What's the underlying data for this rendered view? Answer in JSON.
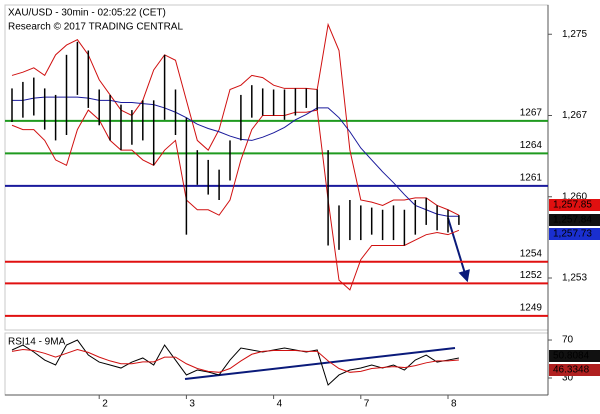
{
  "chart_data": [
    {
      "type": "hilo",
      "title": "XAU/USD - 30min - 02:05:22 (CET)",
      "subtitle": "Research © 2017 TRADING CENTRAL",
      "bar_color": "#000000",
      "high": [
        1270.0,
        1270.6,
        1271.0,
        1270.0,
        1269.4,
        1273.1,
        1274.3,
        1273.5,
        1269.9,
        1269.4,
        1268.5,
        1268.0,
        1268.9,
        1268.9,
        1273.1,
        1269.9,
        1267.3,
        1264.3,
        1263.4,
        1262.5,
        1265.2,
        1269.4,
        1270.3,
        1270.0,
        1269.9,
        1269.9,
        1270.0,
        1270.0,
        1269.9,
        1264.3,
        1259.2,
        1259.7,
        1259.2,
        1259.0,
        1258.8,
        1259.2,
        1258.8,
        1259.7,
        1259.9,
        1259.2,
        1258.8,
        1258.3
      ],
      "low": [
        1266.9,
        1267.3,
        1267.5,
        1266.2,
        1265.2,
        1265.7,
        1269.4,
        1268.2,
        1266.6,
        1265.2,
        1264.3,
        1264.8,
        1265.2,
        1262.9,
        1267.1,
        1265.7,
        1256.5,
        1261.1,
        1260.2,
        1259.7,
        1261.5,
        1265.2,
        1267.3,
        1267.5,
        1267.5,
        1267.1,
        1267.5,
        1268.2,
        1268.0,
        1255.5,
        1255.1,
        1256.0,
        1256.0,
        1256.5,
        1256.0,
        1256.0,
        1255.5,
        1256.5,
        1257.4,
        1256.9,
        1256.7,
        1257.4
      ],
      "series": [
        {
          "color": "#d01010",
          "values": [
            1271.2,
            1271.5,
            1271.9,
            1271.2,
            1273.1,
            1274.0,
            1274.5,
            1273.1,
            1270.8,
            1269.4,
            1268.0,
            1267.5,
            1268.9,
            1271.7,
            1273.1,
            1272.6,
            1268.9,
            1265.2,
            1264.3,
            1266.2,
            1269.9,
            1270.3,
            1271.2,
            1271.0,
            1270.3,
            1270.0,
            1270.0,
            1270.0,
            1269.9,
            1275.9,
            1273.5,
            1264.3,
            1259.7,
            1259.5,
            1259.2,
            1259.7,
            1259.7,
            1259.9,
            1259.9,
            1259.2,
            1258.8,
            1258.3
          ]
        },
        {
          "color": "#d01010",
          "values": [
            1266.6,
            1266.2,
            1266.2,
            1265.2,
            1263.4,
            1262.9,
            1266.2,
            1268.0,
            1267.1,
            1265.2,
            1264.3,
            1264.3,
            1263.4,
            1262.9,
            1264.3,
            1265.2,
            1259.7,
            1258.8,
            1258.8,
            1258.3,
            1259.7,
            1263.4,
            1266.2,
            1267.5,
            1267.5,
            1267.5,
            1267.8,
            1267.8,
            1268.0,
            1259.7,
            1252.3,
            1251.4,
            1254.2,
            1255.5,
            1255.5,
            1255.5,
            1255.5,
            1256.0,
            1256.5,
            1256.7,
            1256.5,
            1256.9
          ]
        },
        {
          "color": "#1a1a9c",
          "values": [
            1268.9,
            1268.9,
            1269.1,
            1269.2,
            1269.2,
            1269.2,
            1269.2,
            1269.1,
            1268.9,
            1268.9,
            1268.7,
            1268.7,
            1268.6,
            1268.5,
            1268.2,
            1267.8,
            1267.3,
            1266.7,
            1266.3,
            1266.0,
            1265.6,
            1265.3,
            1265.2,
            1265.5,
            1265.9,
            1266.4,
            1267.1,
            1267.6,
            1268.2,
            1268.2,
            1267.3,
            1266.0,
            1264.5,
            1263.4,
            1262.3,
            1261.3,
            1260.2,
            1259.2,
            1258.8,
            1258.4,
            1258.2,
            1258.2
          ]
        }
      ],
      "levels": [
        {
          "value": 1267,
          "color": "#1f9a1f"
        },
        {
          "value": 1264,
          "color": "#1f9a1f"
        },
        {
          "value": 1261,
          "color": "#1a1a9c"
        },
        {
          "value": 1254,
          "color": "#e01010"
        },
        {
          "value": 1252,
          "color": "#e01010"
        },
        {
          "value": 1249,
          "color": "#e01010"
        }
      ],
      "ylim": [
        1247.7,
        1277.7
      ],
      "yticks": [
        {
          "value": 1275,
          "label": "1,275"
        },
        {
          "value": 1267.5,
          "label": "1,267"
        },
        {
          "value": 1260,
          "label": "1,260"
        },
        {
          "value": 1252.5,
          "label": "1,253"
        }
      ],
      "price_labels": [
        {
          "label": "1,257.85",
          "color": "#e01010"
        },
        {
          "label": "1,257.84",
          "color": "#111111"
        },
        {
          "label": "1,257.73",
          "color": "#1a2fd0"
        }
      ]
    },
    {
      "type": "line",
      "title": "RSI14 - 9MA",
      "categories": [
        null,
        null,
        null,
        null,
        null,
        null,
        null,
        null,
        "2",
        null,
        null,
        null,
        null,
        null,
        null,
        null,
        "3",
        null,
        null,
        null,
        null,
        null,
        null,
        null,
        "4",
        null,
        null,
        null,
        null,
        null,
        null,
        null,
        "7",
        null,
        null,
        null,
        null,
        null,
        null,
        null,
        "8",
        null
      ],
      "series": [
        {
          "color": "#000000",
          "values": [
            59.5,
            64.7,
            57.4,
            48.9,
            43.7,
            64.7,
            70.0,
            54.2,
            46.8,
            43.7,
            40.5,
            46.8,
            51.1,
            43.7,
            64.7,
            48.9,
            33.2,
            38.4,
            36.3,
            33.2,
            48.9,
            61.6,
            59.5,
            57.4,
            59.5,
            61.6,
            59.5,
            57.4,
            59.5,
            22.6,
            33.2,
            38.4,
            40.5,
            43.7,
            40.5,
            43.7,
            38.4,
            48.9,
            54.2,
            46.8,
            48.9,
            51.1
          ]
        },
        {
          "color": "#d01010",
          "values": [
            58,
            60,
            59,
            56,
            52,
            56,
            60,
            57,
            52,
            48,
            45,
            45,
            47,
            47,
            52,
            52,
            45,
            40,
            37,
            36,
            40,
            48,
            55,
            58,
            59,
            59,
            59,
            58,
            58,
            48,
            40,
            36,
            37,
            40,
            41,
            42,
            41,
            43,
            46,
            48,
            48,
            49
          ]
        }
      ],
      "ylim": [
        12.1,
        77.4
      ],
      "yticks": [
        70,
        30
      ],
      "value_labels": [
        {
          "label": "50.8084",
          "color": "#111111"
        },
        {
          "label": "46.3348",
          "color": "#b02020"
        }
      ]
    }
  ]
}
